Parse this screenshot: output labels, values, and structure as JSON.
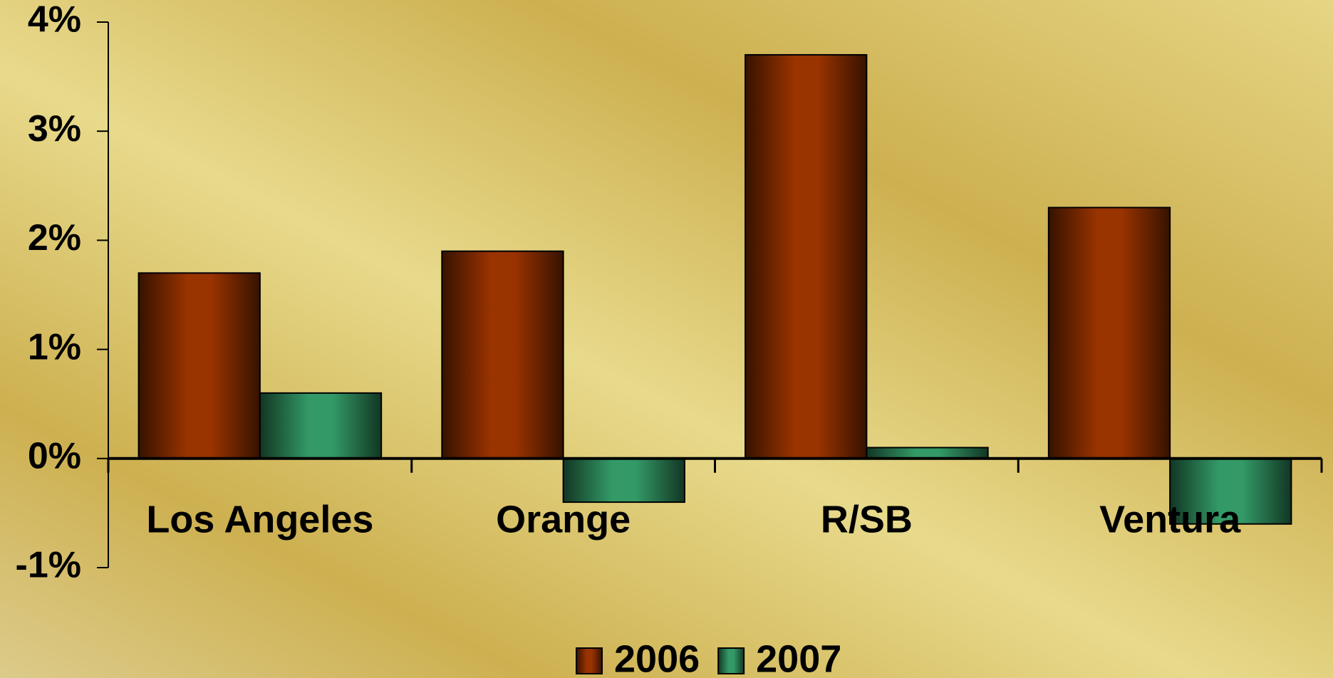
{
  "chart_data": {
    "type": "bar",
    "categories": [
      "Los Angeles",
      "Orange",
      "R/SB",
      "Ventura"
    ],
    "series": [
      {
        "name": "2006",
        "color": "#993300",
        "values": [
          1.7,
          1.9,
          3.7,
          2.3
        ]
      },
      {
        "name": "2007",
        "color": "#339966",
        "values": [
          0.6,
          -0.4,
          0.1,
          -0.6
        ]
      }
    ],
    "ylim": [
      -1,
      4
    ],
    "yticks": [
      {
        "value": -1,
        "label": "-1%"
      },
      {
        "value": 0,
        "label": "0%"
      },
      {
        "value": 1,
        "label": "1%"
      },
      {
        "value": 2,
        "label": "2%"
      },
      {
        "value": 3,
        "label": "3%"
      },
      {
        "value": 4,
        "label": "4%"
      }
    ],
    "legend": "bottom"
  }
}
